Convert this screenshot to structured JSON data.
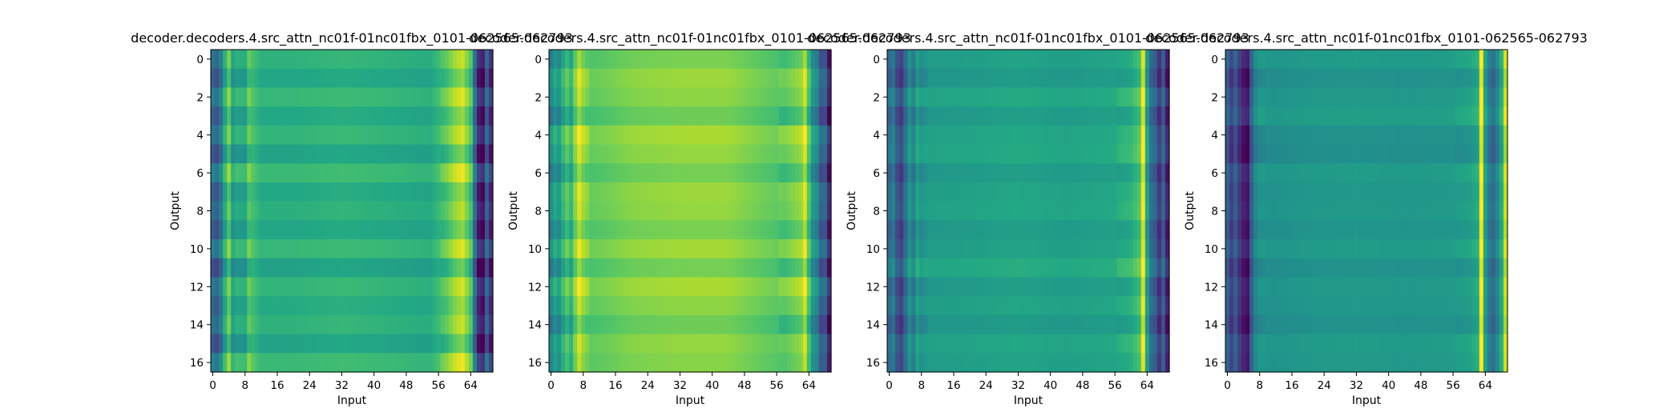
{
  "chart_data": [
    {
      "type": "heatmap",
      "title": "decoder.decoders.4.src_attn_nc01f-01nc01fbx_0101-062565-062793",
      "xlabel": "Input",
      "ylabel": "Output",
      "x_ticks": [
        "0",
        "8",
        "16",
        "24",
        "32",
        "40",
        "48",
        "56",
        "64"
      ],
      "y_ticks": [
        "0",
        "2",
        "4",
        "6",
        "8",
        "10",
        "12",
        "14",
        "16"
      ],
      "n_cols": 70,
      "n_rows": 17,
      "colormap": "viridis",
      "column_profile": [
        {
          "x": 0,
          "v": 0.35
        },
        {
          "x": 1,
          "v": 0.3
        },
        {
          "x": 2,
          "v": 0.4
        },
        {
          "x": 3,
          "v": 0.6
        },
        {
          "x": 4,
          "v": 0.75
        },
        {
          "x": 5,
          "v": 0.55
        },
        {
          "x": 6,
          "v": 0.6
        },
        {
          "x": 8,
          "v": 0.58
        },
        {
          "x": 9,
          "v": 0.72
        },
        {
          "x": 12,
          "v": 0.62
        },
        {
          "x": 20,
          "v": 0.62
        },
        {
          "x": 32,
          "v": 0.64
        },
        {
          "x": 44,
          "v": 0.62
        },
        {
          "x": 54,
          "v": 0.6
        },
        {
          "x": 56,
          "v": 0.66
        },
        {
          "x": 58,
          "v": 0.72
        },
        {
          "x": 60,
          "v": 0.82
        },
        {
          "x": 62,
          "v": 0.88
        },
        {
          "x": 64,
          "v": 0.7
        },
        {
          "x": 65,
          "v": 0.35
        },
        {
          "x": 66,
          "v": 0.1
        },
        {
          "x": 67,
          "v": 0.05
        },
        {
          "x": 68,
          "v": 0.3
        },
        {
          "x": 69,
          "v": 0.12
        }
      ],
      "row_offsets": [
        0.02,
        -0.03,
        0.04,
        -0.02,
        0.03,
        -0.04,
        0.05,
        -0.02,
        0.01,
        -0.03,
        0.04,
        -0.05,
        0.03,
        -0.01,
        0.02,
        -0.04,
        0.05
      ]
    },
    {
      "type": "heatmap",
      "title": "decoder.decoders.4.src_attn_nc01f-01nc01fbx_0101-062565-062793",
      "xlabel": "Input",
      "ylabel": "Output",
      "x_ticks": [
        "0",
        "8",
        "16",
        "24",
        "32",
        "40",
        "48",
        "56",
        "64"
      ],
      "y_ticks": [
        "0",
        "2",
        "4",
        "6",
        "8",
        "10",
        "12",
        "14",
        "16"
      ],
      "n_cols": 70,
      "n_rows": 17,
      "colormap": "viridis",
      "column_profile": [
        {
          "x": 0,
          "v": 0.45
        },
        {
          "x": 1,
          "v": 0.55
        },
        {
          "x": 2,
          "v": 0.5
        },
        {
          "x": 3,
          "v": 0.62
        },
        {
          "x": 4,
          "v": 0.7
        },
        {
          "x": 5,
          "v": 0.62
        },
        {
          "x": 6,
          "v": 0.78
        },
        {
          "x": 7,
          "v": 0.9
        },
        {
          "x": 8,
          "v": 0.82
        },
        {
          "x": 10,
          "v": 0.74
        },
        {
          "x": 14,
          "v": 0.76
        },
        {
          "x": 20,
          "v": 0.8
        },
        {
          "x": 32,
          "v": 0.82
        },
        {
          "x": 44,
          "v": 0.82
        },
        {
          "x": 52,
          "v": 0.76
        },
        {
          "x": 58,
          "v": 0.72
        },
        {
          "x": 62,
          "v": 0.8
        },
        {
          "x": 63,
          "v": 0.9
        },
        {
          "x": 64,
          "v": 0.68
        },
        {
          "x": 65,
          "v": 0.5
        },
        {
          "x": 66,
          "v": 0.45
        },
        {
          "x": 67,
          "v": 0.28
        },
        {
          "x": 68,
          "v": 0.3
        },
        {
          "x": 69,
          "v": 0.08
        }
      ],
      "row_offsets": [
        -0.02,
        0.03,
        0.01,
        -0.04,
        0.05,
        0.02,
        -0.03,
        0.03,
        0.02,
        -0.02,
        0.04,
        -0.03,
        0.05,
        0.01,
        -0.04,
        0.02,
        0.0
      ]
    },
    {
      "type": "heatmap",
      "title": "decoder.decoders.4.src_attn_nc01f-01nc01fbx_0101-062565-062793",
      "xlabel": "Input",
      "ylabel": "Output",
      "x_ticks": [
        "0",
        "8",
        "16",
        "24",
        "32",
        "40",
        "48",
        "56",
        "64"
      ],
      "y_ticks": [
        "0",
        "2",
        "4",
        "6",
        "8",
        "10",
        "12",
        "14",
        "16"
      ],
      "n_cols": 70,
      "n_rows": 17,
      "colormap": "viridis",
      "column_profile": [
        {
          "x": 0,
          "v": 0.35
        },
        {
          "x": 1,
          "v": 0.4
        },
        {
          "x": 2,
          "v": 0.25
        },
        {
          "x": 3,
          "v": 0.2
        },
        {
          "x": 4,
          "v": 0.35
        },
        {
          "x": 5,
          "v": 0.5
        },
        {
          "x": 6,
          "v": 0.42
        },
        {
          "x": 7,
          "v": 0.55
        },
        {
          "x": 8,
          "v": 0.5
        },
        {
          "x": 10,
          "v": 0.55
        },
        {
          "x": 20,
          "v": 0.56
        },
        {
          "x": 32,
          "v": 0.58
        },
        {
          "x": 44,
          "v": 0.56
        },
        {
          "x": 56,
          "v": 0.58
        },
        {
          "x": 60,
          "v": 0.62
        },
        {
          "x": 62,
          "v": 0.7
        },
        {
          "x": 63,
          "v": 0.95
        },
        {
          "x": 64,
          "v": 0.55
        },
        {
          "x": 65,
          "v": 0.35
        },
        {
          "x": 66,
          "v": 0.3
        },
        {
          "x": 67,
          "v": 0.15
        },
        {
          "x": 68,
          "v": 0.3
        },
        {
          "x": 69,
          "v": 0.08
        }
      ],
      "row_offsets": [
        0.0,
        -0.03,
        0.03,
        -0.02,
        0.02,
        0.03,
        -0.02,
        0.01,
        0.02,
        -0.02,
        0.0,
        0.04,
        -0.02,
        0.01,
        -0.03,
        0.02,
        0.0
      ]
    },
    {
      "type": "heatmap",
      "title": "decoder.decoders.4.src_attn_nc01f-01nc01fbx_0101-062565-062793",
      "xlabel": "Input",
      "ylabel": "Output",
      "x_ticks": [
        "0",
        "8",
        "16",
        "24",
        "32",
        "40",
        "48",
        "56",
        "64"
      ],
      "y_ticks": [
        "0",
        "2",
        "4",
        "6",
        "8",
        "10",
        "12",
        "14",
        "16"
      ],
      "n_cols": 70,
      "n_rows": 17,
      "colormap": "viridis",
      "column_profile": [
        {
          "x": 0,
          "v": 0.3
        },
        {
          "x": 1,
          "v": 0.18
        },
        {
          "x": 2,
          "v": 0.28
        },
        {
          "x": 3,
          "v": 0.15
        },
        {
          "x": 4,
          "v": 0.08
        },
        {
          "x": 5,
          "v": 0.05
        },
        {
          "x": 6,
          "v": 0.3
        },
        {
          "x": 7,
          "v": 0.45
        },
        {
          "x": 8,
          "v": 0.5
        },
        {
          "x": 12,
          "v": 0.5
        },
        {
          "x": 20,
          "v": 0.52
        },
        {
          "x": 32,
          "v": 0.53
        },
        {
          "x": 44,
          "v": 0.52
        },
        {
          "x": 56,
          "v": 0.53
        },
        {
          "x": 60,
          "v": 0.55
        },
        {
          "x": 62,
          "v": 0.6
        },
        {
          "x": 63,
          "v": 0.98
        },
        {
          "x": 64,
          "v": 0.55
        },
        {
          "x": 65,
          "v": 0.4
        },
        {
          "x": 66,
          "v": 0.35
        },
        {
          "x": 67,
          "v": 0.45
        },
        {
          "x": 68,
          "v": 0.6
        },
        {
          "x": 69,
          "v": 0.9
        }
      ],
      "row_offsets": [
        0.02,
        -0.02,
        0.01,
        0.03,
        -0.02,
        -0.03,
        0.02,
        0.0,
        0.01,
        -0.01,
        0.02,
        -0.02,
        0.01,
        0.0,
        -0.02,
        0.02,
        0.01
      ]
    }
  ]
}
